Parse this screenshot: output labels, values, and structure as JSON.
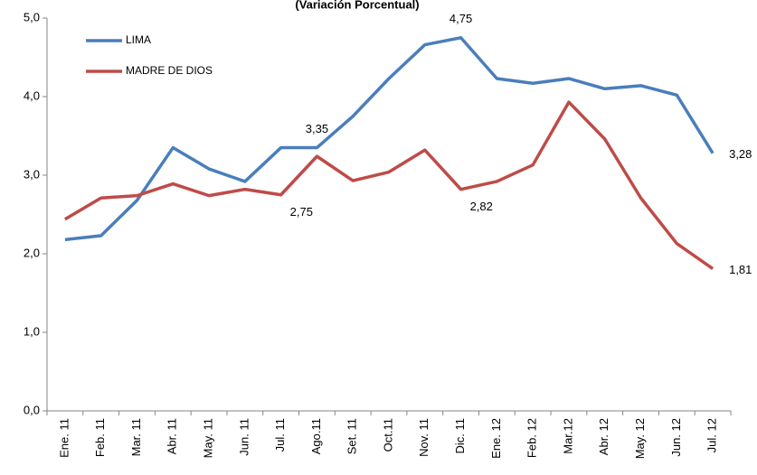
{
  "chart_data": {
    "type": "line",
    "title": "(Variación Porcentual)",
    "categories": [
      "Ene. 11",
      "Feb. 11",
      "Mar. 11",
      "Abr. 11",
      "May. 11",
      "Jun. 11",
      "Jul. 11",
      "Ago.11",
      "Set. 11",
      "Oct.11",
      "Nov. 11",
      "Dic. 11",
      "Ene. 12",
      "Feb. 12",
      "Mar.12",
      "Abr. 12",
      "May. 12",
      "Jun. 12",
      "Jul. 12"
    ],
    "series": [
      {
        "name": "LIMA",
        "color": "#4a7ebb",
        "values": [
          2.18,
          2.23,
          2.68,
          3.35,
          3.08,
          2.92,
          3.35,
          3.35,
          3.75,
          4.23,
          4.66,
          4.75,
          4.23,
          4.17,
          4.23,
          4.1,
          4.14,
          4.02,
          3.28
        ],
        "value_labels": [
          null,
          null,
          null,
          null,
          null,
          null,
          null,
          "3,35",
          null,
          null,
          null,
          "4,75",
          null,
          null,
          null,
          null,
          null,
          null,
          "3,28"
        ]
      },
      {
        "name": "MADRE DE DIOS",
        "color": "#be4b48",
        "values": [
          2.44,
          2.71,
          2.74,
          2.89,
          2.74,
          2.82,
          2.75,
          3.24,
          2.93,
          3.04,
          3.32,
          2.82,
          2.92,
          3.13,
          3.93,
          3.46,
          2.71,
          2.13,
          1.81
        ],
        "value_labels": [
          null,
          null,
          null,
          null,
          null,
          null,
          "2,75",
          null,
          null,
          null,
          null,
          "2,82",
          null,
          null,
          null,
          null,
          null,
          null,
          "1,81"
        ]
      }
    ],
    "ylim": [
      0,
      5
    ],
    "yticks": [
      {
        "value": 0,
        "label": "0,0"
      },
      {
        "value": 1,
        "label": "1,0"
      },
      {
        "value": 2,
        "label": "2,0"
      },
      {
        "value": 3,
        "label": "3,0"
      },
      {
        "value": 4,
        "label": "4,0"
      },
      {
        "value": 5,
        "label": "5,0"
      }
    ],
    "legend": "upper left"
  }
}
